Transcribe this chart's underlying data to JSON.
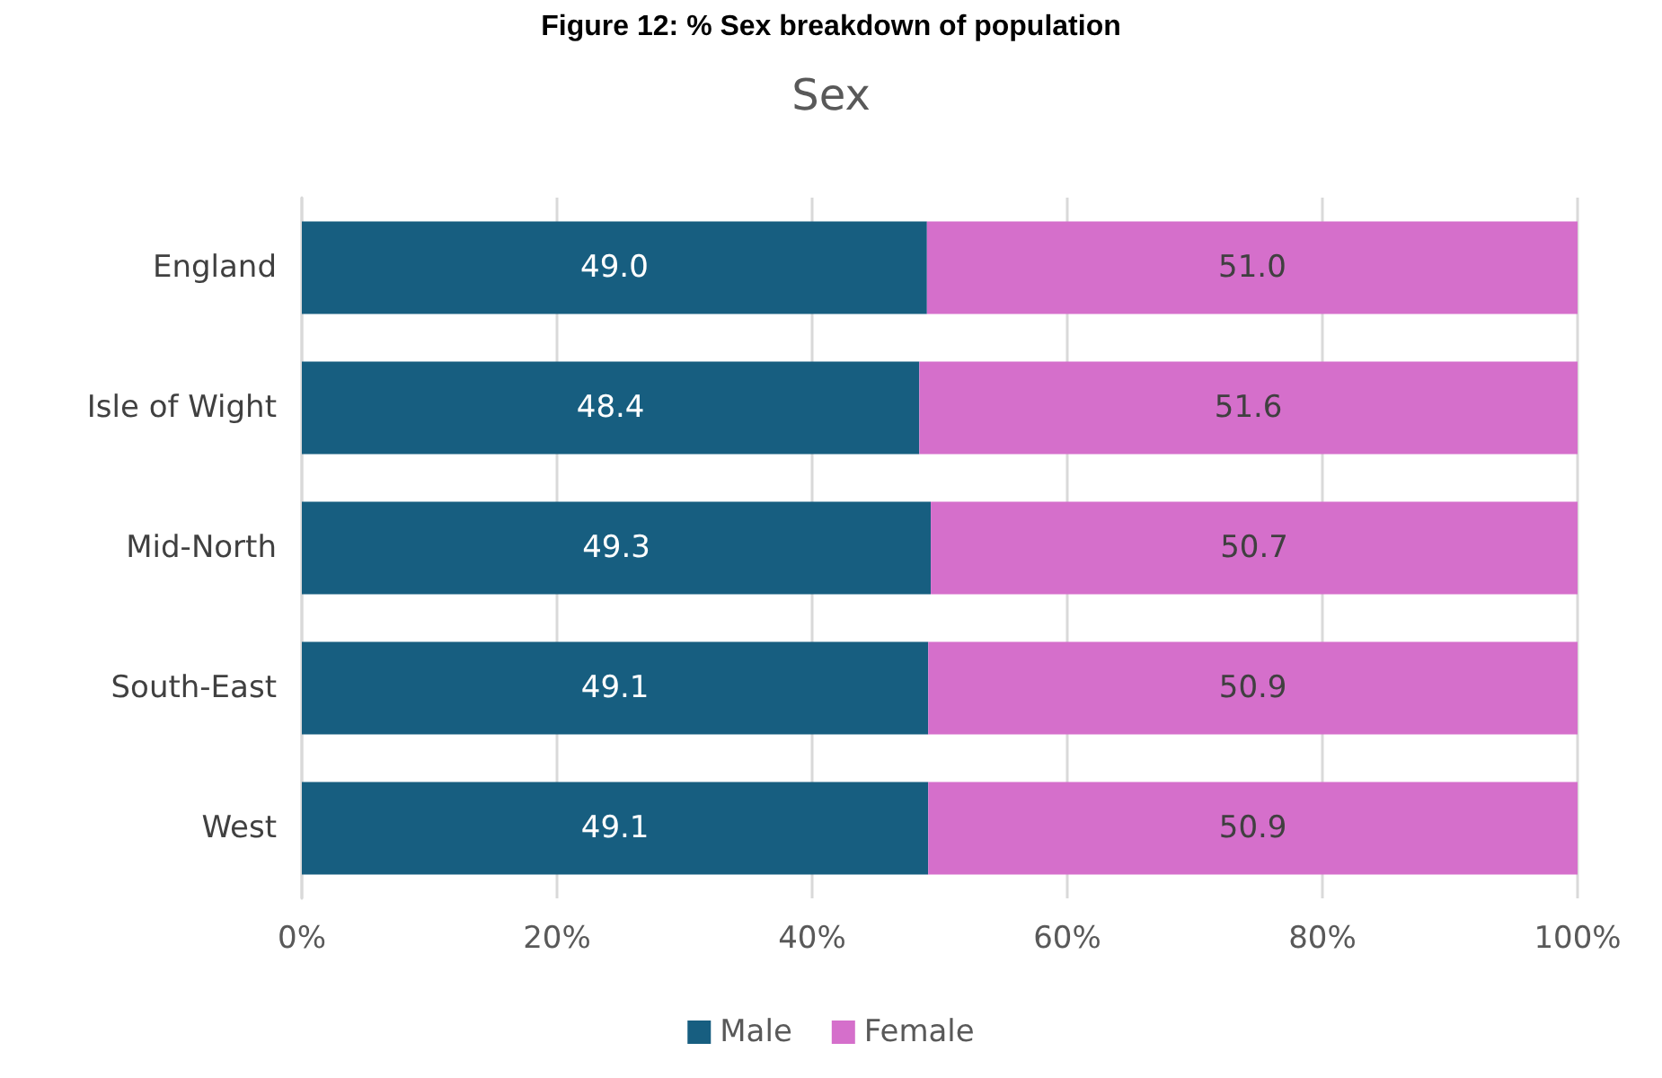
{
  "chart_data": {
    "type": "bar",
    "orientation": "horizontal",
    "stacked": true,
    "title": "Figure 12: % Sex breakdown of population",
    "subtitle": "Sex",
    "categories": [
      "England",
      "Isle of Wight",
      "Mid-North",
      "South-East",
      "West"
    ],
    "series": [
      {
        "name": "Male",
        "color": "#175e80",
        "values": [
          49.0,
          48.4,
          49.3,
          49.1,
          49.1
        ],
        "value_labels": [
          "49.0",
          "48.4",
          "49.3",
          "49.1",
          "49.1"
        ]
      },
      {
        "name": "Female",
        "color": "#d56fcb",
        "values": [
          51.0,
          51.6,
          50.7,
          50.9,
          50.9
        ],
        "value_labels": [
          "51.0",
          "51.6",
          "50.7",
          "50.9",
          "50.9"
        ]
      }
    ],
    "xlim": [
      0,
      100
    ],
    "xticks": [
      {
        "value": 0,
        "label": "0%"
      },
      {
        "value": 20,
        "label": "20%"
      },
      {
        "value": 40,
        "label": "40%"
      },
      {
        "value": 60,
        "label": "60%"
      },
      {
        "value": 80,
        "label": "80%"
      },
      {
        "value": 100,
        "label": "100%"
      }
    ],
    "grid": "x",
    "legend": "bottom"
  }
}
